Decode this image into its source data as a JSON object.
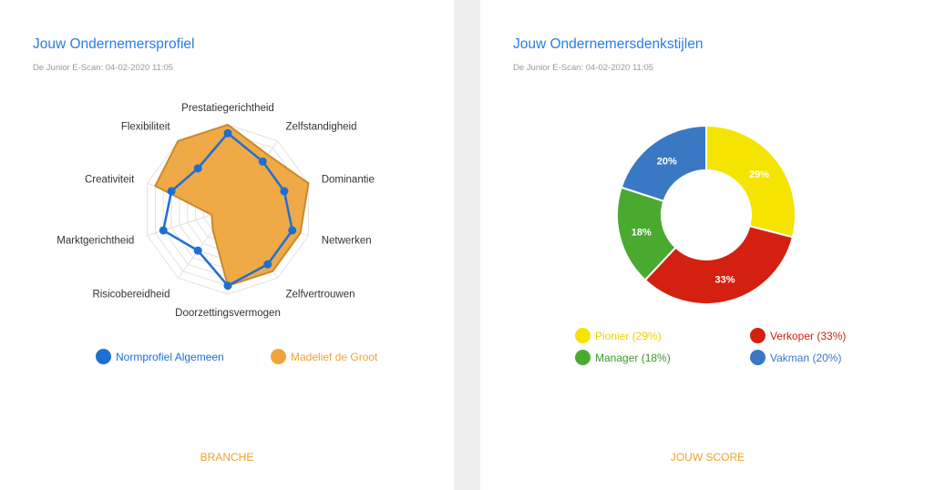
{
  "left_card": {
    "title": "Jouw Ondernemersprofiel",
    "subtitle": "De Junior E-Scan: 04-02-2020 11:05",
    "legend": [
      {
        "label": "Normprofiel Algemeen",
        "color": "#1e6fd4"
      },
      {
        "label": "Madelief de Groot",
        "color": "#eea43d"
      }
    ],
    "footer": "BRANCHE"
  },
  "right_card": {
    "title": "Jouw Ondernemersdenkstijlen",
    "subtitle": "De Junior E-Scan: 04-02-2020 11:05",
    "legend": [
      {
        "label": "Pionier (29%)",
        "color": "#f5e400",
        "text_color": "#f5d800"
      },
      {
        "label": "Verkoper (33%)",
        "color": "#d42010",
        "text_color": "#d42010"
      },
      {
        "label": "Manager (18%)",
        "color": "#4aaa30",
        "text_color": "#3a9a28"
      },
      {
        "label": "Vakman (20%)",
        "color": "#3a78c4",
        "text_color": "#3a78c4"
      }
    ],
    "footer": "JOUW SCORE"
  },
  "chart_data": [
    {
      "type": "radar",
      "categories": [
        "Prestatiegerichtheid",
        "Zelfstandigheid",
        "Dominantie",
        "Netwerken",
        "Zelfvertrouwen",
        "Doorzettingsvermogen",
        "Risicobereidheid",
        "Marktgerichtheid",
        "Creativiteit",
        "Flexibiliteit"
      ],
      "rlim": [
        0,
        10
      ],
      "grid": true,
      "series": [
        {
          "name": "Normprofiel Algemeen",
          "color": "#1e6fd4",
          "values": [
            9,
            7,
            7,
            8,
            8,
            9,
            6,
            8,
            7,
            6
          ]
        },
        {
          "name": "Madelief de Groot",
          "color": "#eea43d",
          "values": [
            10,
            8,
            10,
            9,
            9,
            9,
            3,
            2,
            9,
            10
          ]
        }
      ]
    },
    {
      "type": "pie",
      "donut": true,
      "slices": [
        {
          "label": "Pionier",
          "value": 29,
          "display": "29%",
          "color": "#f5e400"
        },
        {
          "label": "Verkoper",
          "value": 33,
          "display": "33%",
          "color": "#d42010"
        },
        {
          "label": "Manager",
          "value": 18,
          "display": "18%",
          "color": "#4aaa30"
        },
        {
          "label": "Vakman",
          "value": 20,
          "display": "20%",
          "color": "#3a78c4"
        }
      ]
    }
  ]
}
